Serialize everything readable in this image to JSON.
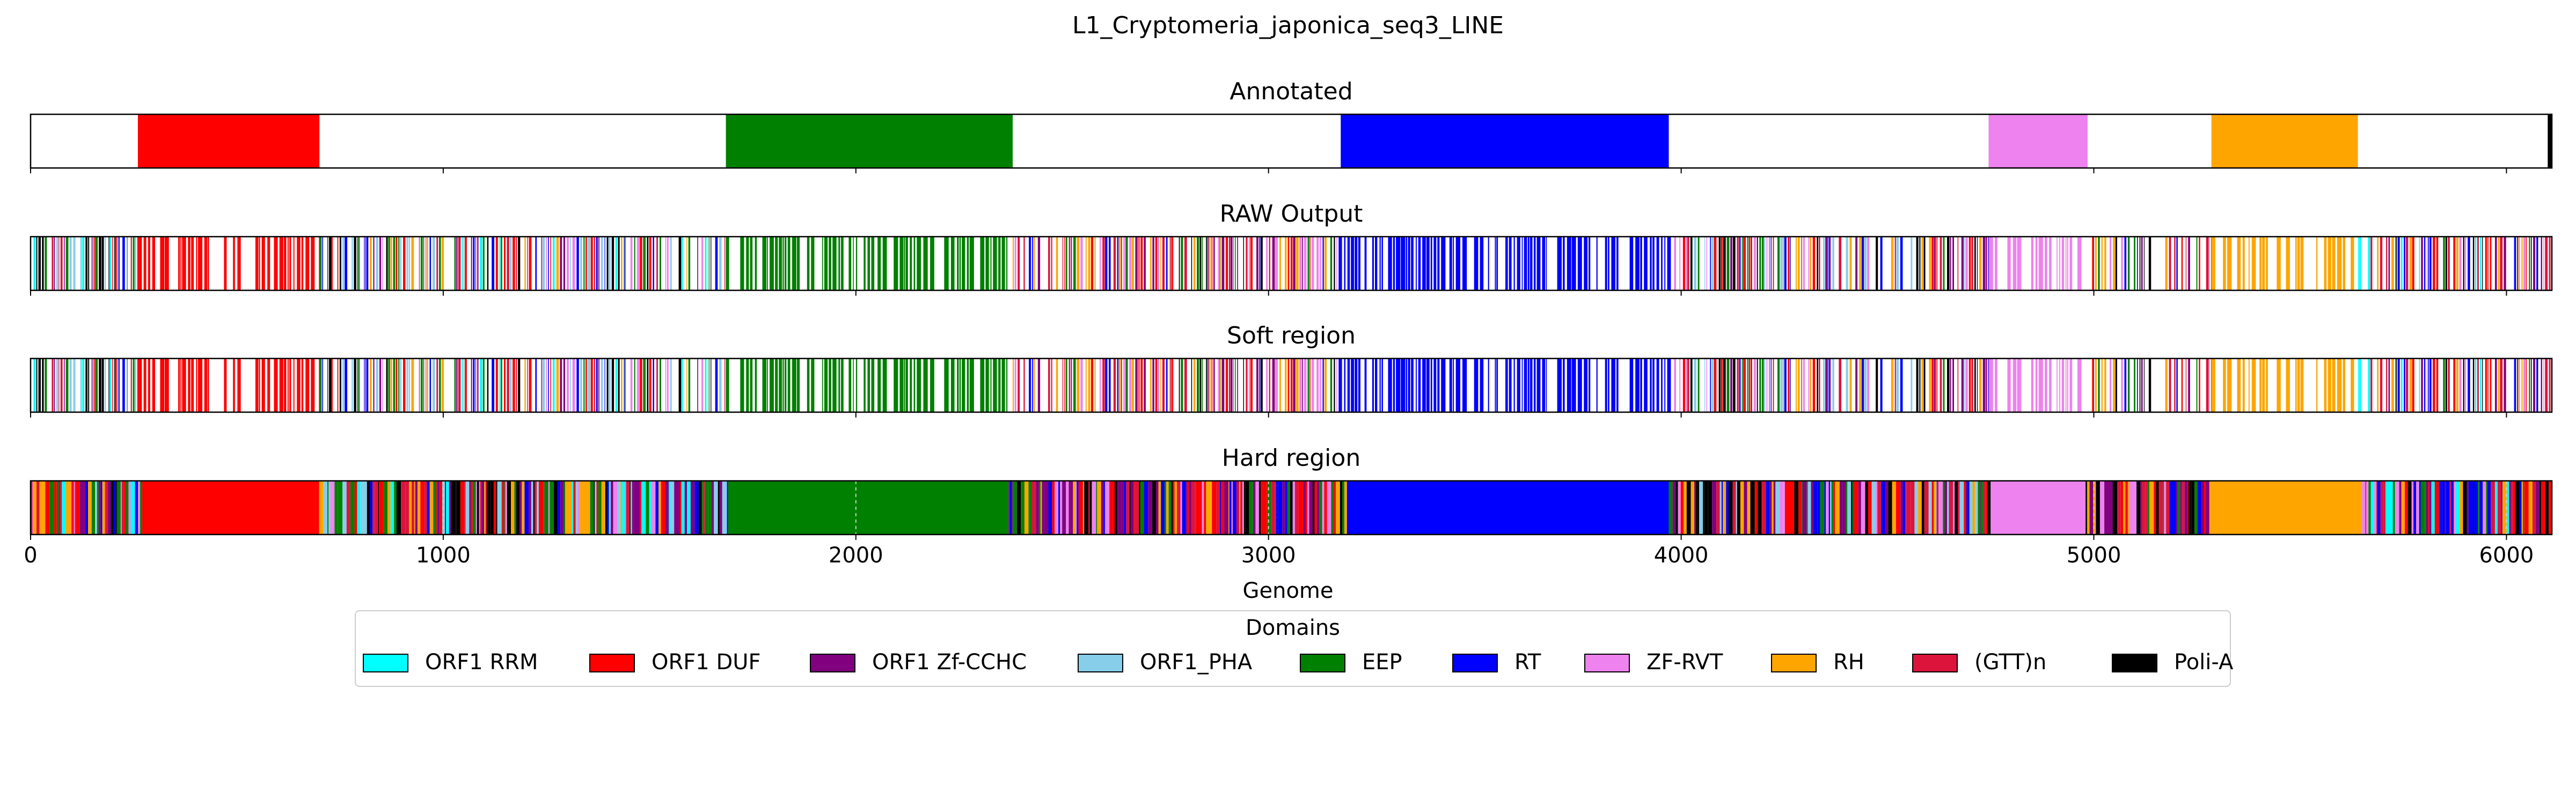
{
  "chart_data": {
    "type": "bar",
    "title": "L1_Cryptomeria_japonica_seq3_LINE",
    "xlabel": "Genome",
    "ylabel": "",
    "xlim": [
      0,
      6110
    ],
    "x_ticks": [
      0,
      1000,
      2000,
      3000,
      4000,
      5000,
      6000
    ],
    "x_tick_labels": [
      "0",
      "1000",
      "2000",
      "3000",
      "4000",
      "5000",
      "6000"
    ],
    "grid": false,
    "legend_position": "bottom-center",
    "legend": {
      "title": "Domains",
      "entries": [
        {
          "label": "ORF1 RRM",
          "key": "RRM",
          "color": "#00ffff"
        },
        {
          "label": "ORF1 DUF",
          "key": "DUF",
          "color": "#ff0000"
        },
        {
          "label": "ORF1 Zf-CCHC",
          "key": "ZF",
          "color": "#800080"
        },
        {
          "label": "ORF1_PHA",
          "key": "PHA",
          "color": "#87ceeb"
        },
        {
          "label": "EEP",
          "key": "EEP",
          "color": "#008000"
        },
        {
          "label": "RT",
          "key": "RT",
          "color": "#0000ff"
        },
        {
          "label": "ZF-RVT",
          "key": "ZFRVT",
          "color": "#ee82ee"
        },
        {
          "label": "RH",
          "key": "RH",
          "color": "#ffa500"
        },
        {
          "label": "(GTT)n",
          "key": "GTT",
          "color": "#dc143c"
        },
        {
          "label": "Poli-A",
          "key": "POLIA",
          "color": "#000000"
        }
      ]
    },
    "panels": [
      {
        "name": "Annotated",
        "kind": "annotated",
        "segments": [
          {
            "domain": "ORF1 DUF",
            "start": 260,
            "end": 700
          },
          {
            "domain": "EEP",
            "start": 1685,
            "end": 2380
          },
          {
            "domain": "RT",
            "start": 3175,
            "end": 3970
          },
          {
            "domain": "ZF-RVT",
            "start": 4745,
            "end": 4985
          },
          {
            "domain": "RH",
            "start": 5285,
            "end": 5640
          },
          {
            "domain": "Poli-A",
            "start": 6100,
            "end": 6110
          }
        ]
      },
      {
        "name": "RAW Output",
        "kind": "raw",
        "regions": [
          {
            "start": 0,
            "end": 260,
            "mix": [
              "RRM",
              "DUF",
              "ZF",
              "PHA",
              "EEP",
              "RT",
              "GTT",
              "POLIA"
            ]
          },
          {
            "start": 260,
            "end": 700,
            "main": "DUF"
          },
          {
            "start": 700,
            "end": 1685,
            "mix": [
              "RRM",
              "DUF",
              "ZF",
              "PHA",
              "EEP",
              "RT",
              "ZFRVT",
              "RH",
              "GTT",
              "POLIA"
            ]
          },
          {
            "start": 1685,
            "end": 2380,
            "main": "EEP"
          },
          {
            "start": 2380,
            "end": 3175,
            "mix": [
              "DUF",
              "ZF",
              "EEP",
              "RT",
              "ZFRVT",
              "RH",
              "GTT",
              "POLIA"
            ]
          },
          {
            "start": 3175,
            "end": 3975,
            "main": "RT"
          },
          {
            "start": 3975,
            "end": 4745,
            "mix": [
              "DUF",
              "ZF",
              "EEP",
              "RT",
              "ZFRVT",
              "RH",
              "GTT",
              "POLIA",
              "PHA"
            ]
          },
          {
            "start": 4745,
            "end": 4985,
            "main": "ZFRVT"
          },
          {
            "start": 4985,
            "end": 5285,
            "mix": [
              "DUF",
              "ZF",
              "EEP",
              "RT",
              "ZFRVT",
              "RH",
              "GTT",
              "POLIA"
            ]
          },
          {
            "start": 5285,
            "end": 5640,
            "main": "RH"
          },
          {
            "start": 5640,
            "end": 6110,
            "mix": [
              "RRM",
              "DUF",
              "ZF",
              "EEP",
              "RT",
              "ZFRVT",
              "RH",
              "GTT",
              "POLIA"
            ]
          }
        ]
      },
      {
        "name": "Soft region",
        "kind": "raw",
        "regions": [
          {
            "start": 0,
            "end": 260,
            "mix": [
              "RRM",
              "DUF",
              "ZF",
              "PHA",
              "EEP",
              "RT",
              "GTT",
              "POLIA"
            ]
          },
          {
            "start": 260,
            "end": 700,
            "main": "DUF"
          },
          {
            "start": 700,
            "end": 1685,
            "mix": [
              "RRM",
              "DUF",
              "ZF",
              "PHA",
              "EEP",
              "RT",
              "ZFRVT",
              "RH",
              "GTT",
              "POLIA"
            ]
          },
          {
            "start": 1685,
            "end": 2380,
            "main": "EEP"
          },
          {
            "start": 2380,
            "end": 3175,
            "mix": [
              "DUF",
              "ZF",
              "EEP",
              "RT",
              "ZFRVT",
              "RH",
              "GTT",
              "POLIA"
            ]
          },
          {
            "start": 3175,
            "end": 3975,
            "main": "RT"
          },
          {
            "start": 3975,
            "end": 4745,
            "mix": [
              "DUF",
              "ZF",
              "EEP",
              "RT",
              "ZFRVT",
              "RH",
              "GTT",
              "POLIA",
              "PHA"
            ]
          },
          {
            "start": 4745,
            "end": 4985,
            "main": "ZFRVT"
          },
          {
            "start": 4985,
            "end": 5285,
            "mix": [
              "DUF",
              "ZF",
              "EEP",
              "RT",
              "ZFRVT",
              "RH",
              "GTT",
              "POLIA"
            ]
          },
          {
            "start": 5285,
            "end": 5640,
            "main": "RH"
          },
          {
            "start": 5640,
            "end": 6110,
            "mix": [
              "RRM",
              "DUF",
              "ZF",
              "EEP",
              "RT",
              "ZFRVT",
              "RH",
              "GTT",
              "POLIA"
            ]
          }
        ]
      },
      {
        "name": "Hard region",
        "kind": "hard",
        "regions": [
          {
            "start": 0,
            "end": 270,
            "mix": [
              "RRM",
              "DUF",
              "ZF",
              "PHA",
              "EEP",
              "RT",
              "ZFRVT",
              "RH",
              "GTT",
              "POLIA"
            ]
          },
          {
            "start": 270,
            "end": 690,
            "main": "DUF"
          },
          {
            "start": 690,
            "end": 1690,
            "mix": [
              "RRM",
              "DUF",
              "ZF",
              "PHA",
              "EEP",
              "RT",
              "ZFRVT",
              "RH",
              "GTT",
              "POLIA"
            ]
          },
          {
            "start": 1690,
            "end": 2370,
            "main": "EEP"
          },
          {
            "start": 2370,
            "end": 3190,
            "mix": [
              "DUF",
              "ZF",
              "EEP",
              "RT",
              "ZFRVT",
              "RH",
              "GTT",
              "POLIA"
            ]
          },
          {
            "start": 3190,
            "end": 3970,
            "main": "RT"
          },
          {
            "start": 3970,
            "end": 4750,
            "mix": [
              "DUF",
              "ZF",
              "PHA",
              "EEP",
              "RT",
              "ZFRVT",
              "RH",
              "GTT",
              "POLIA"
            ]
          },
          {
            "start": 4750,
            "end": 4980,
            "main": "ZFRVT"
          },
          {
            "start": 4980,
            "end": 5280,
            "mix": [
              "DUF",
              "ZF",
              "EEP",
              "RT",
              "ZFRVT",
              "RH",
              "GTT",
              "POLIA"
            ]
          },
          {
            "start": 5280,
            "end": 5650,
            "main": "RH"
          },
          {
            "start": 5650,
            "end": 6110,
            "mix": [
              "RRM",
              "DUF",
              "ZF",
              "EEP",
              "RT",
              "ZFRVT",
              "RH",
              "GTT",
              "POLIA"
            ]
          }
        ],
        "dashed_lines": [
          1000,
          2000,
          3000,
          5000,
          6000
        ]
      }
    ]
  }
}
